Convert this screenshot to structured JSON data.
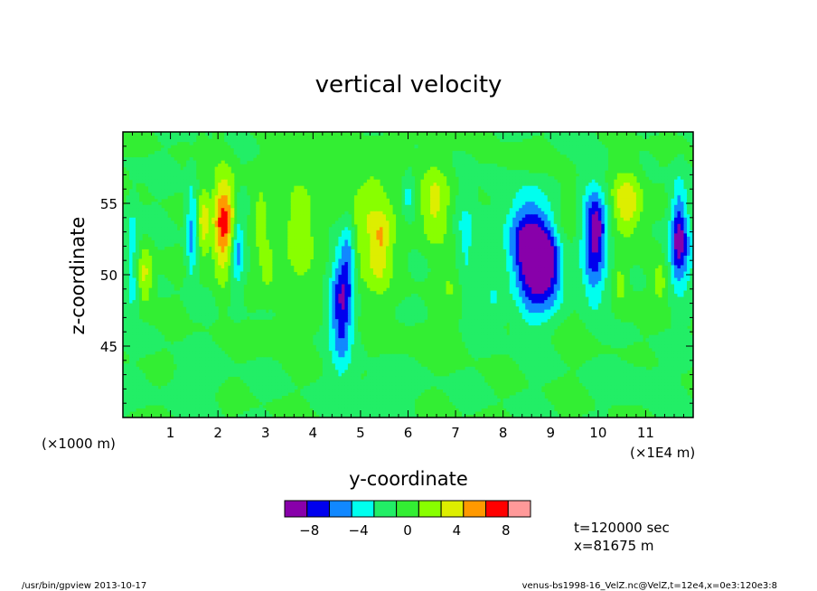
{
  "chart_data": {
    "type": "heatmap",
    "title": "vertical velocity",
    "xlabel": "y-coordinate",
    "ylabel": "z-coordinate",
    "x_scale_note": "(×1E4 m)",
    "y_scale_note": "(×1000 m)",
    "x_range": [
      0,
      12
    ],
    "y_range": [
      40,
      60
    ],
    "x_ticks": [
      1,
      2,
      3,
      4,
      5,
      6,
      7,
      8,
      9,
      10,
      11
    ],
    "y_ticks": [
      45,
      50,
      55
    ],
    "background_color": "#33ee33",
    "features": [
      {
        "x": 2.05,
        "y": 53.5,
        "sx": 0.12,
        "sy": 2.6,
        "value": 7
      },
      {
        "x": 2.25,
        "y": 53.8,
        "sx": 0.12,
        "sy": 2.2,
        "value": 6
      },
      {
        "x": 2.4,
        "y": 52.0,
        "sx": 0.1,
        "sy": 2.0,
        "value": -6
      },
      {
        "x": 1.45,
        "y": 53.0,
        "sx": 0.08,
        "sy": 2.5,
        "value": -5
      },
      {
        "x": 1.7,
        "y": 53.6,
        "sx": 0.1,
        "sy": 1.8,
        "value": 5
      },
      {
        "x": 0.45,
        "y": 50.0,
        "sx": 0.12,
        "sy": 1.4,
        "value": 5
      },
      {
        "x": 0.2,
        "y": 52.0,
        "sx": 0.1,
        "sy": 2.2,
        "value": -3
      },
      {
        "x": 0.2,
        "y": 48.5,
        "sx": 0.1,
        "sy": 1.0,
        "value": -2
      },
      {
        "x": 3.05,
        "y": 50.5,
        "sx": 0.15,
        "sy": 1.2,
        "value": 3
      },
      {
        "x": 3.7,
        "y": 53.0,
        "sx": 0.22,
        "sy": 2.8,
        "value": 4
      },
      {
        "x": 2.9,
        "y": 54.0,
        "sx": 0.1,
        "sy": 1.6,
        "value": 3
      },
      {
        "x": 4.6,
        "y": 48.0,
        "sx": 0.16,
        "sy": 3.0,
        "value": -8
      },
      {
        "x": 4.75,
        "y": 51.5,
        "sx": 0.1,
        "sy": 2.2,
        "value": -4
      },
      {
        "x": 5.15,
        "y": 53.5,
        "sx": 0.4,
        "sy": 3.2,
        "value": 4
      },
      {
        "x": 5.45,
        "y": 52.7,
        "sx": 0.12,
        "sy": 1.0,
        "value": 3
      },
      {
        "x": 5.4,
        "y": 50.5,
        "sx": 0.15,
        "sy": 1.2,
        "value": 2
      },
      {
        "x": 6.0,
        "y": 55.5,
        "sx": 0.1,
        "sy": 1.2,
        "value": -3
      },
      {
        "x": 6.55,
        "y": 55.0,
        "sx": 0.22,
        "sy": 2.0,
        "value": 5
      },
      {
        "x": 7.2,
        "y": 52.5,
        "sx": 0.15,
        "sy": 2.8,
        "value": -3
      },
      {
        "x": 6.9,
        "y": 49.5,
        "sx": 0.2,
        "sy": 1.3,
        "value": 2
      },
      {
        "x": 7.8,
        "y": 48.0,
        "sx": 0.15,
        "sy": 1.2,
        "value": -2
      },
      {
        "x": 8.65,
        "y": 51.0,
        "sx": 0.28,
        "sy": 2.8,
        "value": -9
      },
      {
        "x": 8.4,
        "y": 52.5,
        "sx": 0.25,
        "sy": 2.0,
        "value": -4
      },
      {
        "x": 8.9,
        "y": 51.0,
        "sx": 0.2,
        "sy": 1.5,
        "value": -6
      },
      {
        "x": 9.1,
        "y": 49.0,
        "sx": 0.15,
        "sy": 1.2,
        "value": -2
      },
      {
        "x": 9.35,
        "y": 54.5,
        "sx": 0.15,
        "sy": 1.5,
        "value": 2
      },
      {
        "x": 9.9,
        "y": 52.0,
        "sx": 0.18,
        "sy": 3.0,
        "value": -7
      },
      {
        "x": 10.0,
        "y": 53.5,
        "sx": 0.15,
        "sy": 1.5,
        "value": -4
      },
      {
        "x": 10.45,
        "y": 49.5,
        "sx": 0.12,
        "sy": 1.3,
        "value": 3
      },
      {
        "x": 10.6,
        "y": 55.0,
        "sx": 0.22,
        "sy": 1.6,
        "value": 6
      },
      {
        "x": 11.3,
        "y": 49.5,
        "sx": 0.12,
        "sy": 1.2,
        "value": 3
      },
      {
        "x": 11.7,
        "y": 53.0,
        "sx": 0.12,
        "sy": 2.4,
        "value": -7
      },
      {
        "x": 11.75,
        "y": 51.5,
        "sx": 0.25,
        "sy": 1.5,
        "value": -3
      },
      {
        "x": 3.2,
        "y": 46.0,
        "sx": 0.3,
        "sy": 0.8,
        "value": 1
      },
      {
        "x": 6.5,
        "y": 45.5,
        "sx": 0.5,
        "sy": 1.0,
        "value": 1
      },
      {
        "x": 9.5,
        "y": 46.0,
        "sx": 0.5,
        "sy": 1.0,
        "value": 1
      },
      {
        "x": 1.5,
        "y": 42.5,
        "sx": 0.4,
        "sy": 1.0,
        "value": -1
      },
      {
        "x": 5.5,
        "y": 42.0,
        "sx": 0.5,
        "sy": 1.0,
        "value": -1
      },
      {
        "x": 10.8,
        "y": 42.5,
        "sx": 0.4,
        "sy": 1.0,
        "value": -1
      },
      {
        "x": 4.0,
        "y": 58.0,
        "sx": 0.4,
        "sy": 0.8,
        "value": 1
      },
      {
        "x": 8.5,
        "y": 58.0,
        "sx": 0.5,
        "sy": 0.8,
        "value": 1
      }
    ],
    "colorbar": {
      "levels": [
        -10,
        -8,
        -6,
        -4,
        -2,
        0,
        2,
        4,
        6,
        8,
        10
      ],
      "colors": [
        "#8800aa",
        "#0000ee",
        "#1188ff",
        "#00ffee",
        "#22ee66",
        "#33ee33",
        "#88ff00",
        "#ddee00",
        "#ff9900",
        "#ff0000",
        "#ff9999"
      ],
      "tick_labels": [
        "−8",
        "−4",
        "0",
        "4",
        "8"
      ],
      "tick_values": [
        -8,
        -4,
        0,
        4,
        8
      ]
    },
    "annotations": {
      "time": "t=120000 sec",
      "slice": "x=81675 m"
    }
  },
  "footer": {
    "left": "/usr/bin/gpview  2013-10-17",
    "right": "venus-bs1998-16_VelZ.nc@VelZ,t=12e4,x=0e3:120e3:8"
  }
}
